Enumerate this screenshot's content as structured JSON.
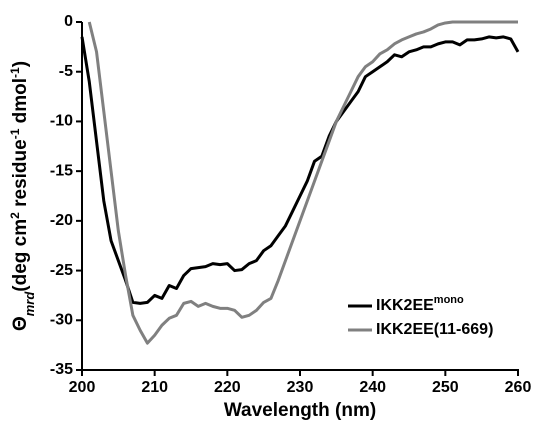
{
  "chart_data": {
    "type": "line",
    "xlabel": "Wavelength (nm)",
    "ylabel": [
      "Θ",
      "mrd",
      "(deg cm",
      "2",
      " residue",
      "-1",
      " dmol",
      "-1",
      ")"
    ],
    "x": [
      200,
      201,
      202,
      203,
      204,
      205,
      206,
      207,
      208,
      209,
      210,
      211,
      212,
      213,
      214,
      215,
      216,
      217,
      218,
      219,
      220,
      221,
      222,
      223,
      224,
      225,
      226,
      227,
      228,
      229,
      230,
      231,
      232,
      233,
      234,
      235,
      236,
      237,
      238,
      239,
      240,
      241,
      242,
      243,
      244,
      245,
      246,
      247,
      248,
      249,
      250,
      251,
      252,
      253,
      254,
      255,
      256,
      257,
      258,
      259,
      260
    ],
    "xlim": [
      200,
      260
    ],
    "xticks": [
      200,
      210,
      220,
      230,
      240,
      250,
      260
    ],
    "ylim": [
      -35,
      0
    ],
    "yticks": [
      0,
      -5,
      -10,
      -15,
      -20,
      -25,
      -30,
      -35
    ],
    "grid": false,
    "legend": "lower right",
    "series": [
      {
        "name": "IKK2EE",
        "name_sup": "mono",
        "color": "#000000",
        "values": [
          -1.5,
          -6,
          -12,
          -18,
          -22,
          -24,
          -26,
          -28.2,
          -28.3,
          -28.2,
          -27.5,
          -27.8,
          -26.5,
          -26.8,
          -25.5,
          -24.8,
          -24.7,
          -24.6,
          -24.3,
          -24.4,
          -24.3,
          -25,
          -24.9,
          -24.3,
          -24,
          -23,
          -22.5,
          -21.5,
          -20.5,
          -19,
          -17.5,
          -16,
          -14,
          -13.5,
          -11.5,
          -10,
          -9,
          -8,
          -7,
          -5.5,
          -5,
          -4.5,
          -4,
          -3.3,
          -3.5,
          -3,
          -2.8,
          -2.5,
          -2.5,
          -2.2,
          -2,
          -2,
          -2.3,
          -1.8,
          -1.8,
          -1.7,
          -1.5,
          -1.6,
          -1.5,
          -1.7,
          -3
        ]
      },
      {
        "name": "IKK2EE(11-669)",
        "color": "#808080",
        "values": [
          null,
          0,
          -3,
          -9,
          -15,
          -21,
          -25.5,
          -29.5,
          -31,
          -32.3,
          -31.5,
          -30.5,
          -29.8,
          -29.5,
          -28.3,
          -28.1,
          -28.6,
          -28.3,
          -28.6,
          -28.8,
          -28.8,
          -29,
          -29.7,
          -29.5,
          -29,
          -28.2,
          -27.8,
          -26,
          -24,
          -22,
          -20,
          -18,
          -16,
          -14,
          -12,
          -10,
          -8.5,
          -7,
          -5.5,
          -4.5,
          -4,
          -3.2,
          -2.8,
          -2.2,
          -1.8,
          -1.5,
          -1.2,
          -1,
          -0.7,
          -0.3,
          -0.1,
          0,
          0,
          0,
          0,
          0,
          0,
          0,
          0,
          0,
          0
        ]
      }
    ]
  }
}
